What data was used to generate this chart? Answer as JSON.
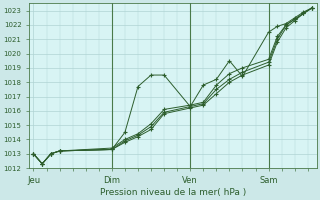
{
  "xlabel": "Pression niveau de la mer( hPa )",
  "bg_color": "#cce8e8",
  "plot_bg_color": "#d8f4f4",
  "grid_color": "#b0d4d4",
  "line_color": "#2d5e2d",
  "vline_color": "#4a7a4a",
  "ylim": [
    1012,
    1023.5
  ],
  "yticks": [
    1012,
    1013,
    1014,
    1015,
    1016,
    1017,
    1018,
    1019,
    1020,
    1021,
    1022,
    1023
  ],
  "xtick_labels": [
    "Jeu",
    "Dim",
    "Ven",
    "Sam"
  ],
  "xtick_positions": [
    0,
    36,
    72,
    108
  ],
  "xlim": [
    -2,
    130
  ],
  "vlines": [
    36,
    72,
    108
  ],
  "series": [
    {
      "x": [
        0,
        4,
        8,
        12,
        36,
        42,
        48,
        54,
        60,
        72,
        78,
        84,
        90,
        96,
        108,
        112,
        116,
        120,
        124,
        128
      ],
      "y": [
        1013.0,
        1012.3,
        1013.0,
        1013.2,
        1013.3,
        1014.5,
        1017.7,
        1018.5,
        1018.5,
        1016.3,
        1017.8,
        1018.2,
        1019.5,
        1018.4,
        1021.5,
        1021.9,
        1022.1,
        1022.5,
        1022.9,
        1023.2
      ]
    },
    {
      "x": [
        0,
        4,
        8,
        12,
        36,
        42,
        48,
        54,
        60,
        72,
        78,
        84,
        90,
        96,
        108,
        112,
        116,
        120,
        124,
        128
      ],
      "y": [
        1013.0,
        1012.3,
        1013.0,
        1013.2,
        1013.3,
        1013.8,
        1014.2,
        1014.7,
        1015.8,
        1016.2,
        1016.4,
        1017.2,
        1018.0,
        1018.5,
        1019.2,
        1020.8,
        1021.8,
        1022.3,
        1022.8,
        1023.2
      ]
    },
    {
      "x": [
        0,
        4,
        8,
        12,
        36,
        42,
        48,
        54,
        60,
        72,
        78,
        84,
        90,
        96,
        108,
        112,
        116,
        120,
        124,
        128
      ],
      "y": [
        1013.0,
        1012.3,
        1013.0,
        1013.2,
        1013.3,
        1013.9,
        1014.3,
        1014.9,
        1015.9,
        1016.3,
        1016.5,
        1017.5,
        1018.2,
        1018.7,
        1019.4,
        1021.0,
        1022.0,
        1022.4,
        1022.8,
        1023.2
      ]
    },
    {
      "x": [
        0,
        4,
        8,
        12,
        36,
        42,
        48,
        54,
        60,
        72,
        78,
        84,
        90,
        96,
        108,
        112,
        116,
        120,
        124,
        128
      ],
      "y": [
        1013.0,
        1012.3,
        1013.0,
        1013.2,
        1013.4,
        1014.0,
        1014.4,
        1015.1,
        1016.1,
        1016.4,
        1016.6,
        1017.8,
        1018.6,
        1019.0,
        1019.6,
        1021.2,
        1022.0,
        1022.4,
        1022.8,
        1023.2
      ]
    }
  ]
}
